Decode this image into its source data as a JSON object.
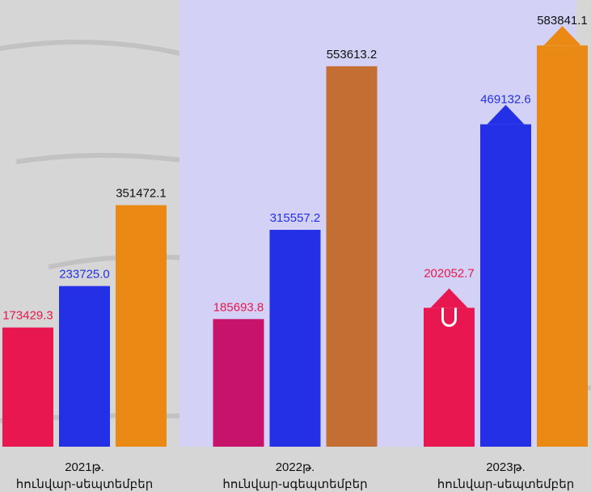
{
  "chart_data": {
    "type": "bar",
    "categories": [
      "2021թ.",
      "2022թ.",
      "2023թ."
    ],
    "category_sublabels": [
      "հունվար-սեպտեմբեր",
      "հունվար-սգեպտեմբեր",
      "հունվար-սեպտեմբեր"
    ],
    "series": [
      {
        "colors": [
          "#e8174f",
          "#c8136a",
          "#e8174f"
        ],
        "label_color": "#e8174f",
        "values": [
          173429.3,
          185693.8,
          202052.7
        ]
      },
      {
        "colors": [
          "#2430e6",
          "#2430e6",
          "#2430e6"
        ],
        "label_color": "#2430e6",
        "values": [
          233725.0,
          315557.2,
          469132.6
        ],
        "value_labels": [
          "233725.0",
          "315557.2",
          "469132.6"
        ]
      },
      {
        "colors": [
          "#ea8a14",
          "#c56e34",
          "#ea8a14"
        ],
        "label_color": "#111111",
        "values": [
          351472.1,
          553613.2,
          583841.1
        ]
      }
    ],
    "ylim": [
      0,
      650000
    ]
  }
}
